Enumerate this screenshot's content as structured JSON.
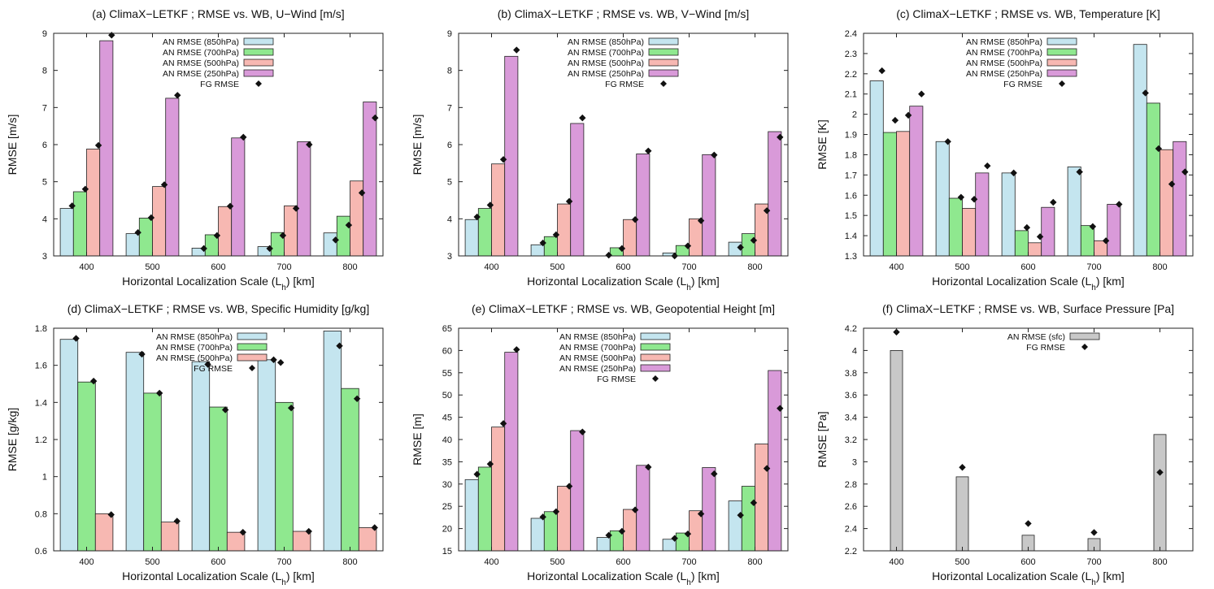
{
  "colors": {
    "p850": "#c4e5ef",
    "p700": "#8fe88f",
    "p500": "#f7b8b2",
    "p250": "#d99ad9",
    "sfc": "#c8c8c8",
    "fg": "#111111"
  },
  "chart_data": [
    {
      "type": "bar",
      "title": "(a) ClimaX−LETKF ; RMSE vs. WB, U−Wind [m/s]",
      "xlabel": "Horizontal Localization Scale (L",
      "xlabel_sub": "h",
      "xlabel_suffix": ") [km]",
      "ylabel": "RMSE [m/s]",
      "categories": [
        "400",
        "500",
        "600",
        "700",
        "800"
      ],
      "ylim": [
        3,
        9
      ],
      "yticks": [
        "3",
        "4",
        "5",
        "6",
        "7",
        "8",
        "9"
      ],
      "legend": [
        "AN RMSE (850hPa)",
        "AN RMSE (700hPa)",
        "AN RMSE (500hPa)",
        "AN RMSE (250hPa)",
        "FG RMSE"
      ],
      "series": [
        {
          "name": "AN RMSE (850hPa)",
          "color_key": "p850",
          "values": [
            4.28,
            3.6,
            3.21,
            3.25,
            3.62
          ]
        },
        {
          "name": "AN RMSE (700hPa)",
          "color_key": "p700",
          "values": [
            4.73,
            4.02,
            3.57,
            3.63,
            4.07
          ]
        },
        {
          "name": "AN RMSE (500hPa)",
          "color_key": "p500",
          "values": [
            5.88,
            4.87,
            4.33,
            4.35,
            5.02
          ]
        },
        {
          "name": "AN RMSE (250hPa)",
          "color_key": "p250",
          "values": [
            8.8,
            7.25,
            6.18,
            6.08,
            7.15
          ]
        }
      ],
      "fg": [
        [
          4.35,
          4.8,
          5.98,
          8.95
        ],
        [
          3.63,
          4.03,
          4.92,
          7.33
        ],
        [
          3.2,
          3.55,
          4.34,
          6.2
        ],
        [
          3.2,
          3.55,
          4.28,
          6.0
        ],
        [
          3.43,
          3.83,
          4.7,
          6.72
        ]
      ]
    },
    {
      "type": "bar",
      "title": "(b) ClimaX−LETKF ; RMSE vs. WB, V−Wind [m/s]",
      "xlabel": "Horizontal Localization Scale (L",
      "xlabel_sub": "h",
      "xlabel_suffix": ") [km]",
      "ylabel": "RMSE [m/s]",
      "categories": [
        "400",
        "500",
        "600",
        "700",
        "800"
      ],
      "ylim": [
        3,
        9
      ],
      "yticks": [
        "3",
        "4",
        "5",
        "6",
        "7",
        "8",
        "9"
      ],
      "legend": [
        "AN RMSE (850hPa)",
        "AN RMSE (700hPa)",
        "AN RMSE (500hPa)",
        "AN RMSE (250hPa)",
        "FG RMSE"
      ],
      "series": [
        {
          "name": "AN RMSE (850hPa)",
          "color_key": "p850",
          "values": [
            3.98,
            3.3,
            2.98,
            3.08,
            3.37
          ]
        },
        {
          "name": "AN RMSE (700hPa)",
          "color_key": "p700",
          "values": [
            4.28,
            3.52,
            3.22,
            3.28,
            3.6
          ]
        },
        {
          "name": "AN RMSE (500hPa)",
          "color_key": "p500",
          "values": [
            5.48,
            4.4,
            3.98,
            4.0,
            4.4
          ]
        },
        {
          "name": "AN RMSE (250hPa)",
          "color_key": "p250",
          "values": [
            8.38,
            6.57,
            5.75,
            5.73,
            6.35
          ]
        }
      ],
      "fg": [
        [
          4.05,
          4.37,
          5.6,
          8.55
        ],
        [
          3.35,
          3.57,
          4.47,
          6.72
        ],
        [
          3.02,
          3.2,
          3.98,
          5.83
        ],
        [
          3.0,
          3.27,
          3.95,
          5.72
        ],
        [
          3.23,
          3.42,
          4.22,
          6.2
        ]
      ]
    },
    {
      "type": "bar",
      "title": "(c) ClimaX−LETKF ; RMSE vs. WB, Temperature [K]",
      "xlabel": "Horizontal Localization Scale (L",
      "xlabel_sub": "h",
      "xlabel_suffix": ") [km]",
      "ylabel": "RMSE [K]",
      "categories": [
        "400",
        "500",
        "600",
        "700",
        "800"
      ],
      "ylim": [
        1.3,
        2.4
      ],
      "yticks": [
        "1.3",
        "1.4",
        "1.5",
        "1.6",
        "1.7",
        "1.8",
        "1.9",
        "2",
        "2.1",
        "2.2",
        "2.3",
        "2.4"
      ],
      "legend": [
        "AN RMSE (850hPa)",
        "AN RMSE (700hPa)",
        "AN RMSE (500hPa)",
        "AN RMSE (250hPa)",
        "FG RMSE"
      ],
      "series": [
        {
          "name": "AN RMSE (850hPa)",
          "color_key": "p850",
          "values": [
            2.165,
            1.865,
            1.71,
            1.74,
            2.345
          ]
        },
        {
          "name": "AN RMSE (700hPa)",
          "color_key": "p700",
          "values": [
            1.91,
            1.585,
            1.425,
            1.45,
            2.055
          ]
        },
        {
          "name": "AN RMSE (500hPa)",
          "color_key": "p500",
          "values": [
            1.915,
            1.535,
            1.365,
            1.375,
            1.825
          ]
        },
        {
          "name": "AN RMSE (250hPa)",
          "color_key": "p250",
          "values": [
            2.04,
            1.71,
            1.54,
            1.555,
            1.865
          ]
        }
      ],
      "fg": [
        [
          2.215,
          1.97,
          1.995,
          2.1
        ],
        [
          1.865,
          1.59,
          1.58,
          1.745
        ],
        [
          1.71,
          1.44,
          1.395,
          1.565
        ],
        [
          1.715,
          1.445,
          1.375,
          1.555
        ],
        [
          2.105,
          1.83,
          1.655,
          1.715
        ]
      ]
    },
    {
      "type": "bar",
      "title": "(d) ClimaX−LETKF ; RMSE vs. WB, Specific Humidity [g/kg]",
      "xlabel": "Horizontal Localization Scale (L",
      "xlabel_sub": "h",
      "xlabel_suffix": ") [km]",
      "ylabel": "RMSE [g/kg]",
      "categories": [
        "400",
        "500",
        "600",
        "700",
        "800"
      ],
      "ylim": [
        0.6,
        1.8
      ],
      "yticks": [
        "0.6",
        "0.8",
        "1",
        "1.2",
        "1.4",
        "1.6",
        "1.8"
      ],
      "legend": [
        "AN RMSE (850hPa)",
        "AN RMSE (700hPa)",
        "AN RMSE (500hPa)",
        "FG RMSE"
      ],
      "series": [
        {
          "name": "AN RMSE (850hPa)",
          "color_key": "p850",
          "values": [
            1.74,
            1.67,
            1.62,
            1.63,
            1.785
          ]
        },
        {
          "name": "AN RMSE (700hPa)",
          "color_key": "p700",
          "values": [
            1.51,
            1.45,
            1.375,
            1.4,
            1.475
          ]
        },
        {
          "name": "AN RMSE (500hPa)",
          "color_key": "p500",
          "values": [
            0.8,
            0.755,
            0.7,
            0.705,
            0.725
          ]
        }
      ],
      "fg": [
        [
          1.745,
          1.515,
          0.795
        ],
        [
          1.66,
          1.45,
          0.76
        ],
        [
          1.605,
          1.36,
          0.7
        ],
        [
          1.63,
          1.37,
          0.705
        ],
        [
          1.705,
          1.42,
          0.725
        ]
      ],
      "fg_extra": [
        [
          3,
          1.615
        ]
      ]
    },
    {
      "type": "bar",
      "title": "(e) ClimaX−LETKF ; RMSE vs. WB, Geopotential Height [m]",
      "xlabel": "Horizontal Localization Scale (L",
      "xlabel_sub": "h",
      "xlabel_suffix": ") [km]",
      "ylabel": "RMSE [m]",
      "categories": [
        "400",
        "500",
        "600",
        "700",
        "800"
      ],
      "ylim": [
        15,
        65
      ],
      "yticks": [
        "15",
        "20",
        "25",
        "30",
        "35",
        "40",
        "45",
        "50",
        "55",
        "60",
        "65"
      ],
      "legend": [
        "AN RMSE (850hPa)",
        "AN RMSE (700hPa)",
        "AN RMSE (500hPa)",
        "AN RMSE (250hPa)",
        "FG RMSE"
      ],
      "series": [
        {
          "name": "AN RMSE (850hPa)",
          "color_key": "p850",
          "values": [
            31.0,
            22.3,
            18.0,
            17.6,
            26.2
          ]
        },
        {
          "name": "AN RMSE (700hPa)",
          "color_key": "p700",
          "values": [
            33.8,
            23.8,
            19.5,
            19.0,
            29.5
          ]
        },
        {
          "name": "AN RMSE (500hPa)",
          "color_key": "p500",
          "values": [
            42.8,
            29.5,
            24.3,
            24.0,
            39.0
          ]
        },
        {
          "name": "AN RMSE (250hPa)",
          "color_key": "p250",
          "values": [
            59.6,
            42.0,
            34.2,
            33.7,
            55.5
          ]
        }
      ],
      "fg": [
        [
          32.2,
          34.5,
          43.6,
          60.2
        ],
        [
          22.6,
          23.8,
          29.5,
          41.7
        ],
        [
          18.5,
          19.4,
          24.2,
          33.8
        ],
        [
          17.8,
          18.8,
          23.3,
          32.3
        ],
        [
          23.0,
          25.8,
          33.5,
          47.0
        ]
      ]
    },
    {
      "type": "bar",
      "title": "(f) ClimaX−LETKF ; RMSE vs. WB, Surface Pressure [Pa]",
      "xlabel": "Horizontal Localization Scale (L",
      "xlabel_sub": "h",
      "xlabel_suffix": ") [km]",
      "ylabel": "RMSE [Pa]",
      "categories": [
        "400",
        "500",
        "600",
        "700",
        "800"
      ],
      "ylim": [
        2.2,
        4.2
      ],
      "yticks": [
        "2.2",
        "2.4",
        "2.6",
        "2.8",
        "3",
        "3.2",
        "3.4",
        "3.6",
        "3.8",
        "4",
        "4.2"
      ],
      "legend": [
        "AN RMSE (sfc)",
        "FG RMSE"
      ],
      "series": [
        {
          "name": "AN RMSE (sfc)",
          "color_key": "sfc",
          "values": [
            4.0,
            2.865,
            2.34,
            2.31,
            3.245
          ]
        }
      ],
      "fg": [
        [
          4.165
        ],
        [
          2.95
        ],
        [
          2.445
        ],
        [
          2.365
        ],
        [
          2.905
        ]
      ]
    }
  ]
}
